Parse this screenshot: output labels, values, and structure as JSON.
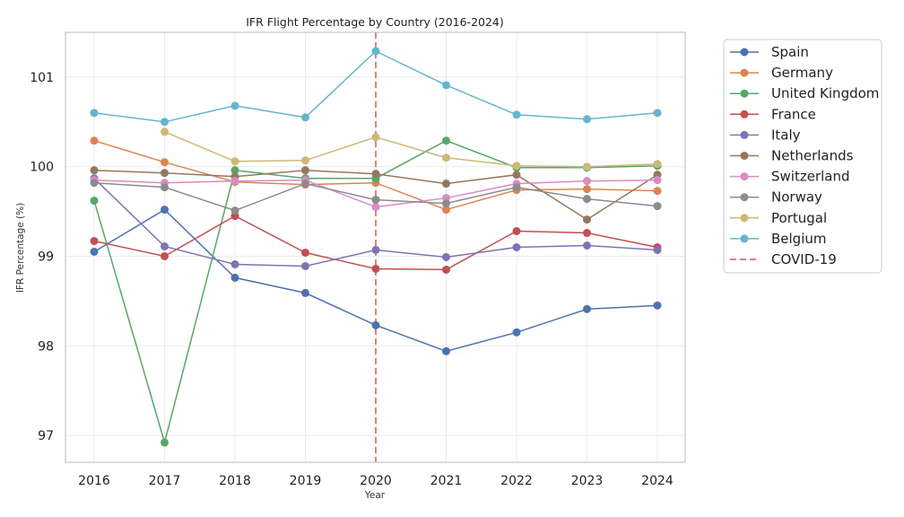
{
  "chart_data": {
    "type": "line",
    "title": "IFR Flight Percentage by Country (2016-2024)",
    "xlabel": "Year",
    "ylabel": "IFR Percentage (%)",
    "x": [
      2016,
      2017,
      2018,
      2019,
      2020,
      2021,
      2022,
      2023,
      2024
    ],
    "ylim": [
      96.7,
      101.5
    ],
    "yticks": [
      97,
      98,
      99,
      100,
      101
    ],
    "grid": true,
    "legend_placement": "outside-right",
    "series": [
      {
        "name": "Spain",
        "color": "#4c72b0",
        "values": [
          99.05,
          99.52,
          98.76,
          98.59,
          98.23,
          97.94,
          98.15,
          98.41,
          98.45
        ]
      },
      {
        "name": "Germany",
        "color": "#dd8452",
        "values": [
          100.29,
          100.05,
          99.83,
          99.8,
          99.82,
          99.52,
          99.74,
          99.75,
          99.73
        ]
      },
      {
        "name": "United Kingdom",
        "color": "#55a868",
        "values": [
          99.62,
          96.92,
          99.96,
          99.87,
          99.87,
          100.29,
          99.99,
          99.99,
          100.01
        ]
      },
      {
        "name": "France",
        "color": "#c44e52",
        "values": [
          99.17,
          99.0,
          99.45,
          99.04,
          98.86,
          98.85,
          99.28,
          99.26,
          99.1
        ]
      },
      {
        "name": "Italy",
        "color": "#8172b3",
        "values": [
          99.87,
          99.11,
          98.91,
          98.89,
          99.07,
          98.99,
          99.1,
          99.12,
          99.07
        ]
      },
      {
        "name": "Netherlands",
        "color": "#937860",
        "values": [
          99.96,
          99.93,
          99.89,
          99.96,
          99.92,
          99.81,
          99.91,
          99.41,
          99.91
        ]
      },
      {
        "name": "Switzerland",
        "color": "#da8bc3",
        "values": [
          99.85,
          99.82,
          99.84,
          99.85,
          99.55,
          99.65,
          99.81,
          99.84,
          99.85
        ]
      },
      {
        "name": "Norway",
        "color": "#8c8c8c",
        "values": [
          99.82,
          99.77,
          99.51,
          99.81,
          99.63,
          99.59,
          99.77,
          99.64,
          99.56
        ]
      },
      {
        "name": "Portugal",
        "color": "#ccb974",
        "values": [
          null,
          100.39,
          100.06,
          100.07,
          100.33,
          100.1,
          100.01,
          100.0,
          100.03
        ]
      },
      {
        "name": "Belgium",
        "color": "#64b5cd",
        "values": [
          100.6,
          100.5,
          100.68,
          100.55,
          101.29,
          100.91,
          100.58,
          100.53,
          100.6
        ]
      }
    ],
    "annotations": [
      {
        "type": "vline",
        "x": 2020,
        "label": "COVID-19",
        "color": "#e08080",
        "style": "dashed"
      }
    ]
  }
}
